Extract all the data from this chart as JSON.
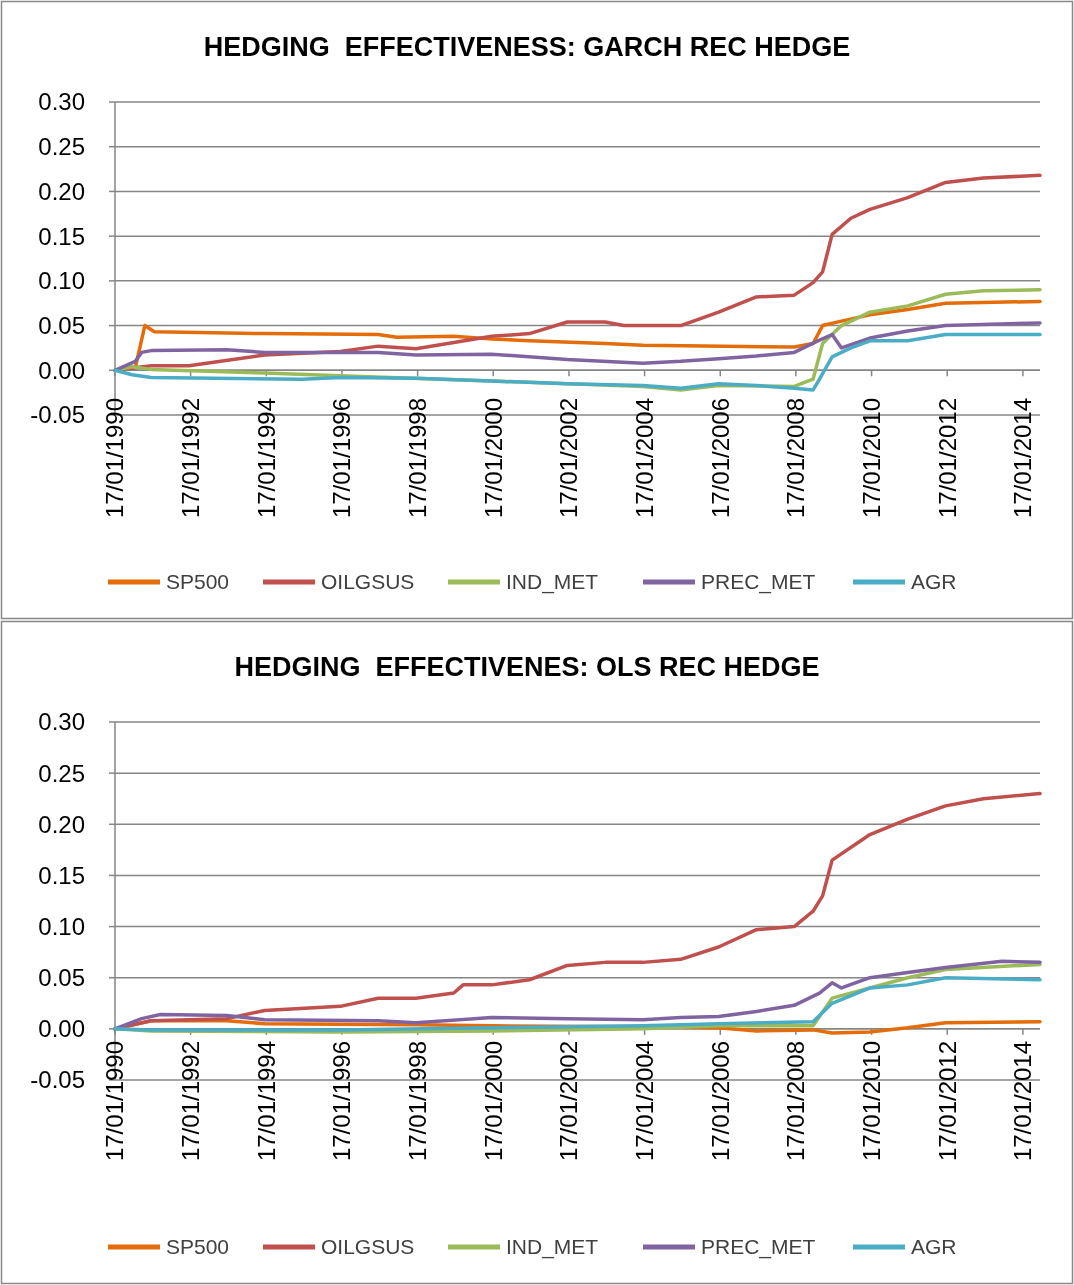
{
  "chart_data": [
    {
      "type": "line",
      "title": "HEDGING  EFFECTIVENESS: GARCH REC HEDGE",
      "legend": "bottom",
      "grid": "y",
      "marker": "none",
      "line_style": "solid",
      "xlim": [
        "1990-01-17",
        "2014-07"
      ],
      "ylim": [
        -0.05,
        0.3
      ],
      "xticks": [
        {
          "value": "1990-01-17",
          "label": "17/01/1990"
        },
        {
          "value": "1992-01-17",
          "label": "17/01/1992"
        },
        {
          "value": "1994-01-17",
          "label": "17/01/1994"
        },
        {
          "value": "1996-01-17",
          "label": "17/01/1996"
        },
        {
          "value": "1998-01-17",
          "label": "17/01/1998"
        },
        {
          "value": "2000-01-17",
          "label": "17/01/2000"
        },
        {
          "value": "2002-01-17",
          "label": "17/01/2002"
        },
        {
          "value": "2004-01-17",
          "label": "17/01/2004"
        },
        {
          "value": "2006-01-17",
          "label": "17/01/2006"
        },
        {
          "value": "2008-01-17",
          "label": "17/01/2008"
        },
        {
          "value": "2010-01-17",
          "label": "17/01/2010"
        },
        {
          "value": "2012-01-17",
          "label": "17/01/2012"
        },
        {
          "value": "2014-01-17",
          "label": "17/01/2014"
        }
      ],
      "yticks": [
        {
          "value": -0.05,
          "label": "-0.05"
        },
        {
          "value": 0,
          "label": "0.00"
        },
        {
          "value": 0.05,
          "label": "0.05"
        },
        {
          "value": 0.1,
          "label": "0.10"
        },
        {
          "value": 0.15,
          "label": "0.15"
        },
        {
          "value": 0.2,
          "label": "0.20"
        },
        {
          "value": 0.25,
          "label": "0.25"
        },
        {
          "value": 0.3,
          "label": "0.30"
        }
      ],
      "series": [
        {
          "name": "SP500",
          "color": "#e46c0a",
          "x": [
            "1990-01-17",
            "1990-08",
            "1990-11",
            "1991-02",
            "1994-01",
            "1997-01",
            "1997-07",
            "1999-01",
            "2000-01",
            "2001-01",
            "2003-01",
            "2004-01",
            "2008-01",
            "2008-07",
            "2008-10",
            "2009-04",
            "2010-01",
            "2011-01",
            "2012-01",
            "2014-07"
          ],
          "values": [
            0,
            0.003,
            0.05,
            0.043,
            0.041,
            0.04,
            0.037,
            0.038,
            0.035,
            0.033,
            0.03,
            0.028,
            0.026,
            0.03,
            0.05,
            0.055,
            0.062,
            0.068,
            0.075,
            0.077
          ]
        },
        {
          "name": "OILGSUS",
          "color": "#c0504d",
          "x": [
            "1990-01-17",
            "1991-01",
            "1992-01",
            "1994-01",
            "1996-01",
            "1997-01",
            "1998-01",
            "1999-01",
            "2000-01",
            "2001-01",
            "2002-01",
            "2003-01",
            "2003-07",
            "2005-01",
            "2006-01",
            "2007-01",
            "2008-01",
            "2008-07",
            "2008-10",
            "2009-01",
            "2009-07",
            "2010-01",
            "2011-01",
            "2012-01",
            "2013-01",
            "2014-07"
          ],
          "values": [
            0,
            0.005,
            0.005,
            0.017,
            0.021,
            0.027,
            0.024,
            0.031,
            0.038,
            0.041,
            0.054,
            0.054,
            0.05,
            0.05,
            0.065,
            0.082,
            0.084,
            0.098,
            0.11,
            0.152,
            0.17,
            0.18,
            0.193,
            0.21,
            0.215,
            0.218
          ]
        },
        {
          "name": "IND_MET",
          "color": "#9bbb59",
          "x": [
            "1990-01-17",
            "1990-07",
            "1991-01",
            "1994-01",
            "1996-01",
            "2000-01",
            "2004-01",
            "2005-01",
            "2006-01",
            "2008-01",
            "2008-07",
            "2008-10",
            "2009-04",
            "2010-01",
            "2011-01",
            "2012-01",
            "2013-01",
            "2014-07"
          ],
          "values": [
            0,
            0.004,
            0.001,
            -0.003,
            -0.006,
            -0.012,
            -0.018,
            -0.022,
            -0.017,
            -0.018,
            -0.01,
            0.03,
            0.05,
            0.065,
            0.072,
            0.085,
            0.089,
            0.09
          ]
        },
        {
          "name": "PREC_MET",
          "color": "#8064a2",
          "x": [
            "1990-01-17",
            "1990-08",
            "1990-10",
            "1991-01",
            "1993-01",
            "1994-01",
            "1996-01",
            "1997-01",
            "1998-01",
            "2000-01",
            "2002-01",
            "2004-01",
            "2005-01",
            "2006-01",
            "2007-01",
            "2008-01",
            "2008-08",
            "2009-01",
            "2009-04",
            "2010-01",
            "2011-01",
            "2012-01",
            "2014-07"
          ],
          "values": [
            0,
            0.01,
            0.02,
            0.022,
            0.023,
            0.02,
            0.02,
            0.02,
            0.017,
            0.018,
            0.012,
            0.008,
            0.01,
            0.013,
            0.016,
            0.02,
            0.032,
            0.04,
            0.025,
            0.036,
            0.044,
            0.05,
            0.053
          ]
        },
        {
          "name": "AGR",
          "color": "#4bacc6",
          "x": [
            "1990-01-17",
            "1990-07",
            "1991-01",
            "1995-01",
            "1996-01",
            "1998-01",
            "2000-01",
            "2002-01",
            "2004-01",
            "2005-01",
            "2006-01",
            "2007-01",
            "2008-01",
            "2008-07",
            "2008-09",
            "2009-01",
            "2009-07",
            "2010-01",
            "2011-01",
            "2012-01",
            "2014-07"
          ],
          "values": [
            0,
            -0.005,
            -0.008,
            -0.01,
            -0.008,
            -0.009,
            -0.012,
            -0.015,
            -0.017,
            -0.02,
            -0.015,
            -0.017,
            -0.02,
            -0.022,
            -0.01,
            0.015,
            0.025,
            0.033,
            0.033,
            0.04,
            0.04
          ]
        }
      ]
    },
    {
      "type": "line",
      "title": "HEDGING  EFFECTIVENES: OLS REC HEDGE",
      "legend": "bottom",
      "grid": "y",
      "marker": "none",
      "line_style": "solid",
      "xlim": [
        "1990-01-17",
        "2014-07"
      ],
      "ylim": [
        -0.05,
        0.3
      ],
      "xticks": [
        {
          "value": "1990-01-17",
          "label": "17/01/1990"
        },
        {
          "value": "1992-01-17",
          "label": "17/01/1992"
        },
        {
          "value": "1994-01-17",
          "label": "17/01/1994"
        },
        {
          "value": "1996-01-17",
          "label": "17/01/1996"
        },
        {
          "value": "1998-01-17",
          "label": "17/01/1998"
        },
        {
          "value": "2000-01-17",
          "label": "17/01/2000"
        },
        {
          "value": "2002-01-17",
          "label": "17/01/2002"
        },
        {
          "value": "2004-01-17",
          "label": "17/01/2004"
        },
        {
          "value": "2006-01-17",
          "label": "17/01/2006"
        },
        {
          "value": "2008-01-17",
          "label": "17/01/2008"
        },
        {
          "value": "2010-01-17",
          "label": "17/01/2010"
        },
        {
          "value": "2012-01-17",
          "label": "17/01/2012"
        },
        {
          "value": "2014-01-17",
          "label": "17/01/2014"
        }
      ],
      "yticks": [
        {
          "value": -0.05,
          "label": "-0.05"
        },
        {
          "value": 0,
          "label": "0.00"
        },
        {
          "value": 0.05,
          "label": "0.05"
        },
        {
          "value": 0.1,
          "label": "0.10"
        },
        {
          "value": 0.15,
          "label": "0.15"
        },
        {
          "value": 0.2,
          "label": "0.20"
        },
        {
          "value": 0.25,
          "label": "0.25"
        },
        {
          "value": 0.3,
          "label": "0.30"
        }
      ],
      "series": [
        {
          "name": "SP500",
          "color": "#e46c0a",
          "x": [
            "1990-01-17",
            "1991-01",
            "1993-01",
            "1994-01",
            "1998-01",
            "2000-01",
            "2004-01",
            "2006-01",
            "2007-01",
            "2008-07",
            "2009-01",
            "2010-01",
            "2011-01",
            "2012-01",
            "2014-07"
          ],
          "values": [
            0,
            0.008,
            0.008,
            0.005,
            0.004,
            0.003,
            0.002,
            0.001,
            -0.002,
            -0.001,
            -0.004,
            -0.003,
            0.001,
            0.006,
            0.007
          ]
        },
        {
          "name": "OILGSUS",
          "color": "#c0504d",
          "x": [
            "1990-01-17",
            "1991-01",
            "1993-01",
            "1994-01",
            "1996-01",
            "1997-01",
            "1998-01",
            "1999-01",
            "1999-04",
            "2000-01",
            "2001-01",
            "2002-01",
            "2003-01",
            "2004-01",
            "2005-01",
            "2006-01",
            "2007-01",
            "2008-01",
            "2008-07",
            "2008-10",
            "2009-01",
            "2010-01",
            "2011-01",
            "2012-01",
            "2013-01",
            "2014-07"
          ],
          "values": [
            0,
            0.008,
            0.01,
            0.018,
            0.022,
            0.03,
            0.03,
            0.035,
            0.043,
            0.043,
            0.048,
            0.062,
            0.065,
            0.065,
            0.068,
            0.08,
            0.097,
            0.1,
            0.115,
            0.13,
            0.165,
            0.19,
            0.205,
            0.218,
            0.225,
            0.23
          ]
        },
        {
          "name": "IND_MET",
          "color": "#9bbb59",
          "x": [
            "1990-01-17",
            "1991-01",
            "1996-01",
            "2000-01",
            "2004-01",
            "2006-01",
            "2008-07",
            "2009-01",
            "2010-01",
            "2011-01",
            "2012-01",
            "2014-07"
          ],
          "values": [
            0,
            -0.002,
            -0.003,
            -0.002,
            0,
            0.003,
            0.003,
            0.03,
            0.04,
            0.05,
            0.058,
            0.063
          ]
        },
        {
          "name": "PREC_MET",
          "color": "#8064a2",
          "x": [
            "1990-01-17",
            "1990-10",
            "1991-04",
            "1993-01",
            "1994-01",
            "1997-01",
            "1998-01",
            "2000-01",
            "2002-01",
            "2004-01",
            "2005-01",
            "2006-01",
            "2007-01",
            "2008-01",
            "2008-09",
            "2009-01",
            "2009-04",
            "2010-01",
            "2011-01",
            "2012-01",
            "2013-07",
            "2014-07"
          ],
          "values": [
            0,
            0.01,
            0.014,
            0.013,
            0.009,
            0.008,
            0.006,
            0.011,
            0.01,
            0.009,
            0.011,
            0.012,
            0.017,
            0.023,
            0.035,
            0.045,
            0.04,
            0.05,
            0.055,
            0.06,
            0.066,
            0.065
          ]
        },
        {
          "name": "AGR",
          "color": "#4bacc6",
          "x": [
            "1990-01-17",
            "1991-01",
            "1996-01",
            "2000-01",
            "2004-01",
            "2006-01",
            "2008-07",
            "2009-01",
            "2010-01",
            "2011-01",
            "2012-01",
            "2014-07"
          ],
          "values": [
            0,
            -0.001,
            -0.001,
            0.001,
            0.003,
            0.005,
            0.007,
            0.025,
            0.04,
            0.043,
            0.05,
            0.048
          ]
        }
      ]
    }
  ]
}
